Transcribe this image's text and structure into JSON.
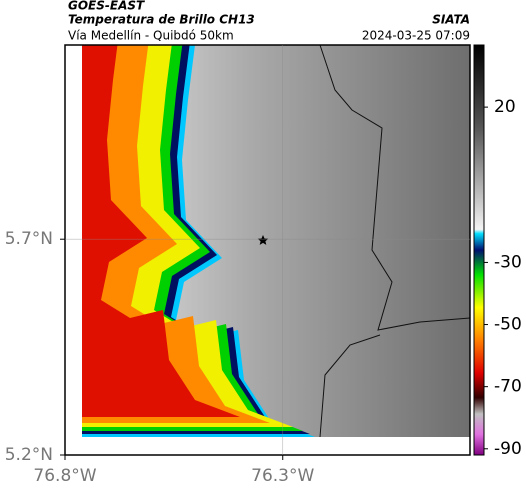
{
  "header": {
    "source": "GOES-EAST",
    "title": "Temperatura de Brillo CH13",
    "subtitle": "Vía Medellín - Quibdó 50km",
    "agency": "SIATA",
    "timestamp": "2024-03-25 07:09"
  },
  "map": {
    "xlim": [
      -76.8,
      -75.87
    ],
    "ylim": [
      5.2,
      6.15
    ],
    "xticks": [
      {
        "value": -76.8,
        "label": "76.8°W"
      },
      {
        "value": -76.3,
        "label": "76.3°W"
      }
    ],
    "yticks": [
      {
        "value": 5.7,
        "label": "5.7°N"
      },
      {
        "value": 5.2,
        "label": "5.2°N"
      }
    ],
    "colorbar": {
      "lim": [
        -92,
        40
      ],
      "ticks": [
        20,
        -30,
        -50,
        -70,
        -90
      ]
    }
  }
}
